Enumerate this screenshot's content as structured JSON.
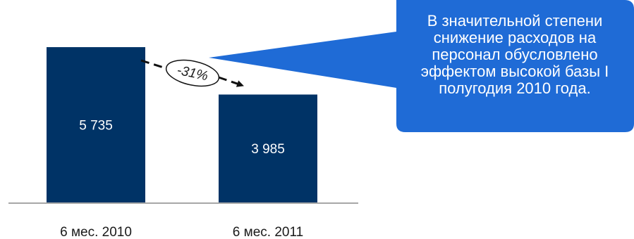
{
  "chart_data": {
    "type": "bar",
    "categories": [
      "6 мес. 2010",
      "6 мес. 2011"
    ],
    "values": [
      5735,
      3985
    ],
    "value_labels": [
      "5 735",
      "3 985"
    ],
    "title": "",
    "xlabel": "",
    "ylabel": "",
    "ylim": [
      0,
      6100
    ],
    "grid": false,
    "legend": "none",
    "bar_color": "#003366",
    "annotations": {
      "change": "-31%",
      "callout": "В значительной степени снижение расходов на персонал обусловлено эффектом высокой базы I полугодия 2010 года."
    },
    "callout_color": "#1f6bd6"
  }
}
